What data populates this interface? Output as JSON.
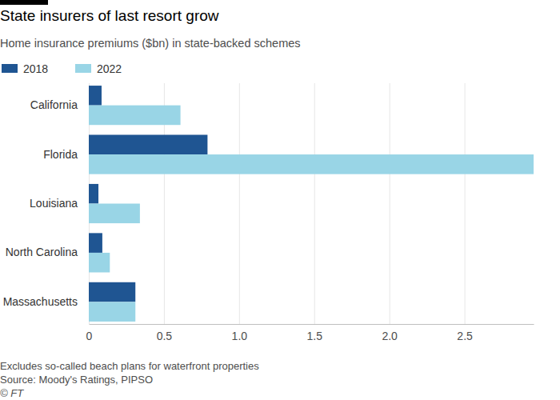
{
  "chart_data": {
    "type": "bar",
    "orientation": "horizontal",
    "title": "State insurers of last resort grow",
    "subtitle": "Home insurance premiums ($bn) in state-backed schemes",
    "categories": [
      "California",
      "Florida",
      "Louisiana",
      "North Carolina",
      "Massachusetts"
    ],
    "series": [
      {
        "name": "2018",
        "color": "#1f5592",
        "values": [
          0.085,
          0.79,
          0.064,
          0.09,
          0.31
        ]
      },
      {
        "name": "2022",
        "color": "#99d5e6",
        "values": [
          0.61,
          2.96,
          0.34,
          0.14,
          0.31
        ]
      }
    ],
    "xlim": [
      0,
      2.96
    ],
    "xticks": [
      0,
      0.5,
      {
        "value": 1,
        "label": "1.0"
      },
      1.5,
      {
        "value": 2,
        "label": "2.0"
      },
      2.5
    ],
    "grid": true,
    "legend": "top-left",
    "notes": [
      "Excludes so-called beach plans for waterfront properties",
      "Source: Moody's Ratings, PIPSO",
      "© FT"
    ]
  }
}
